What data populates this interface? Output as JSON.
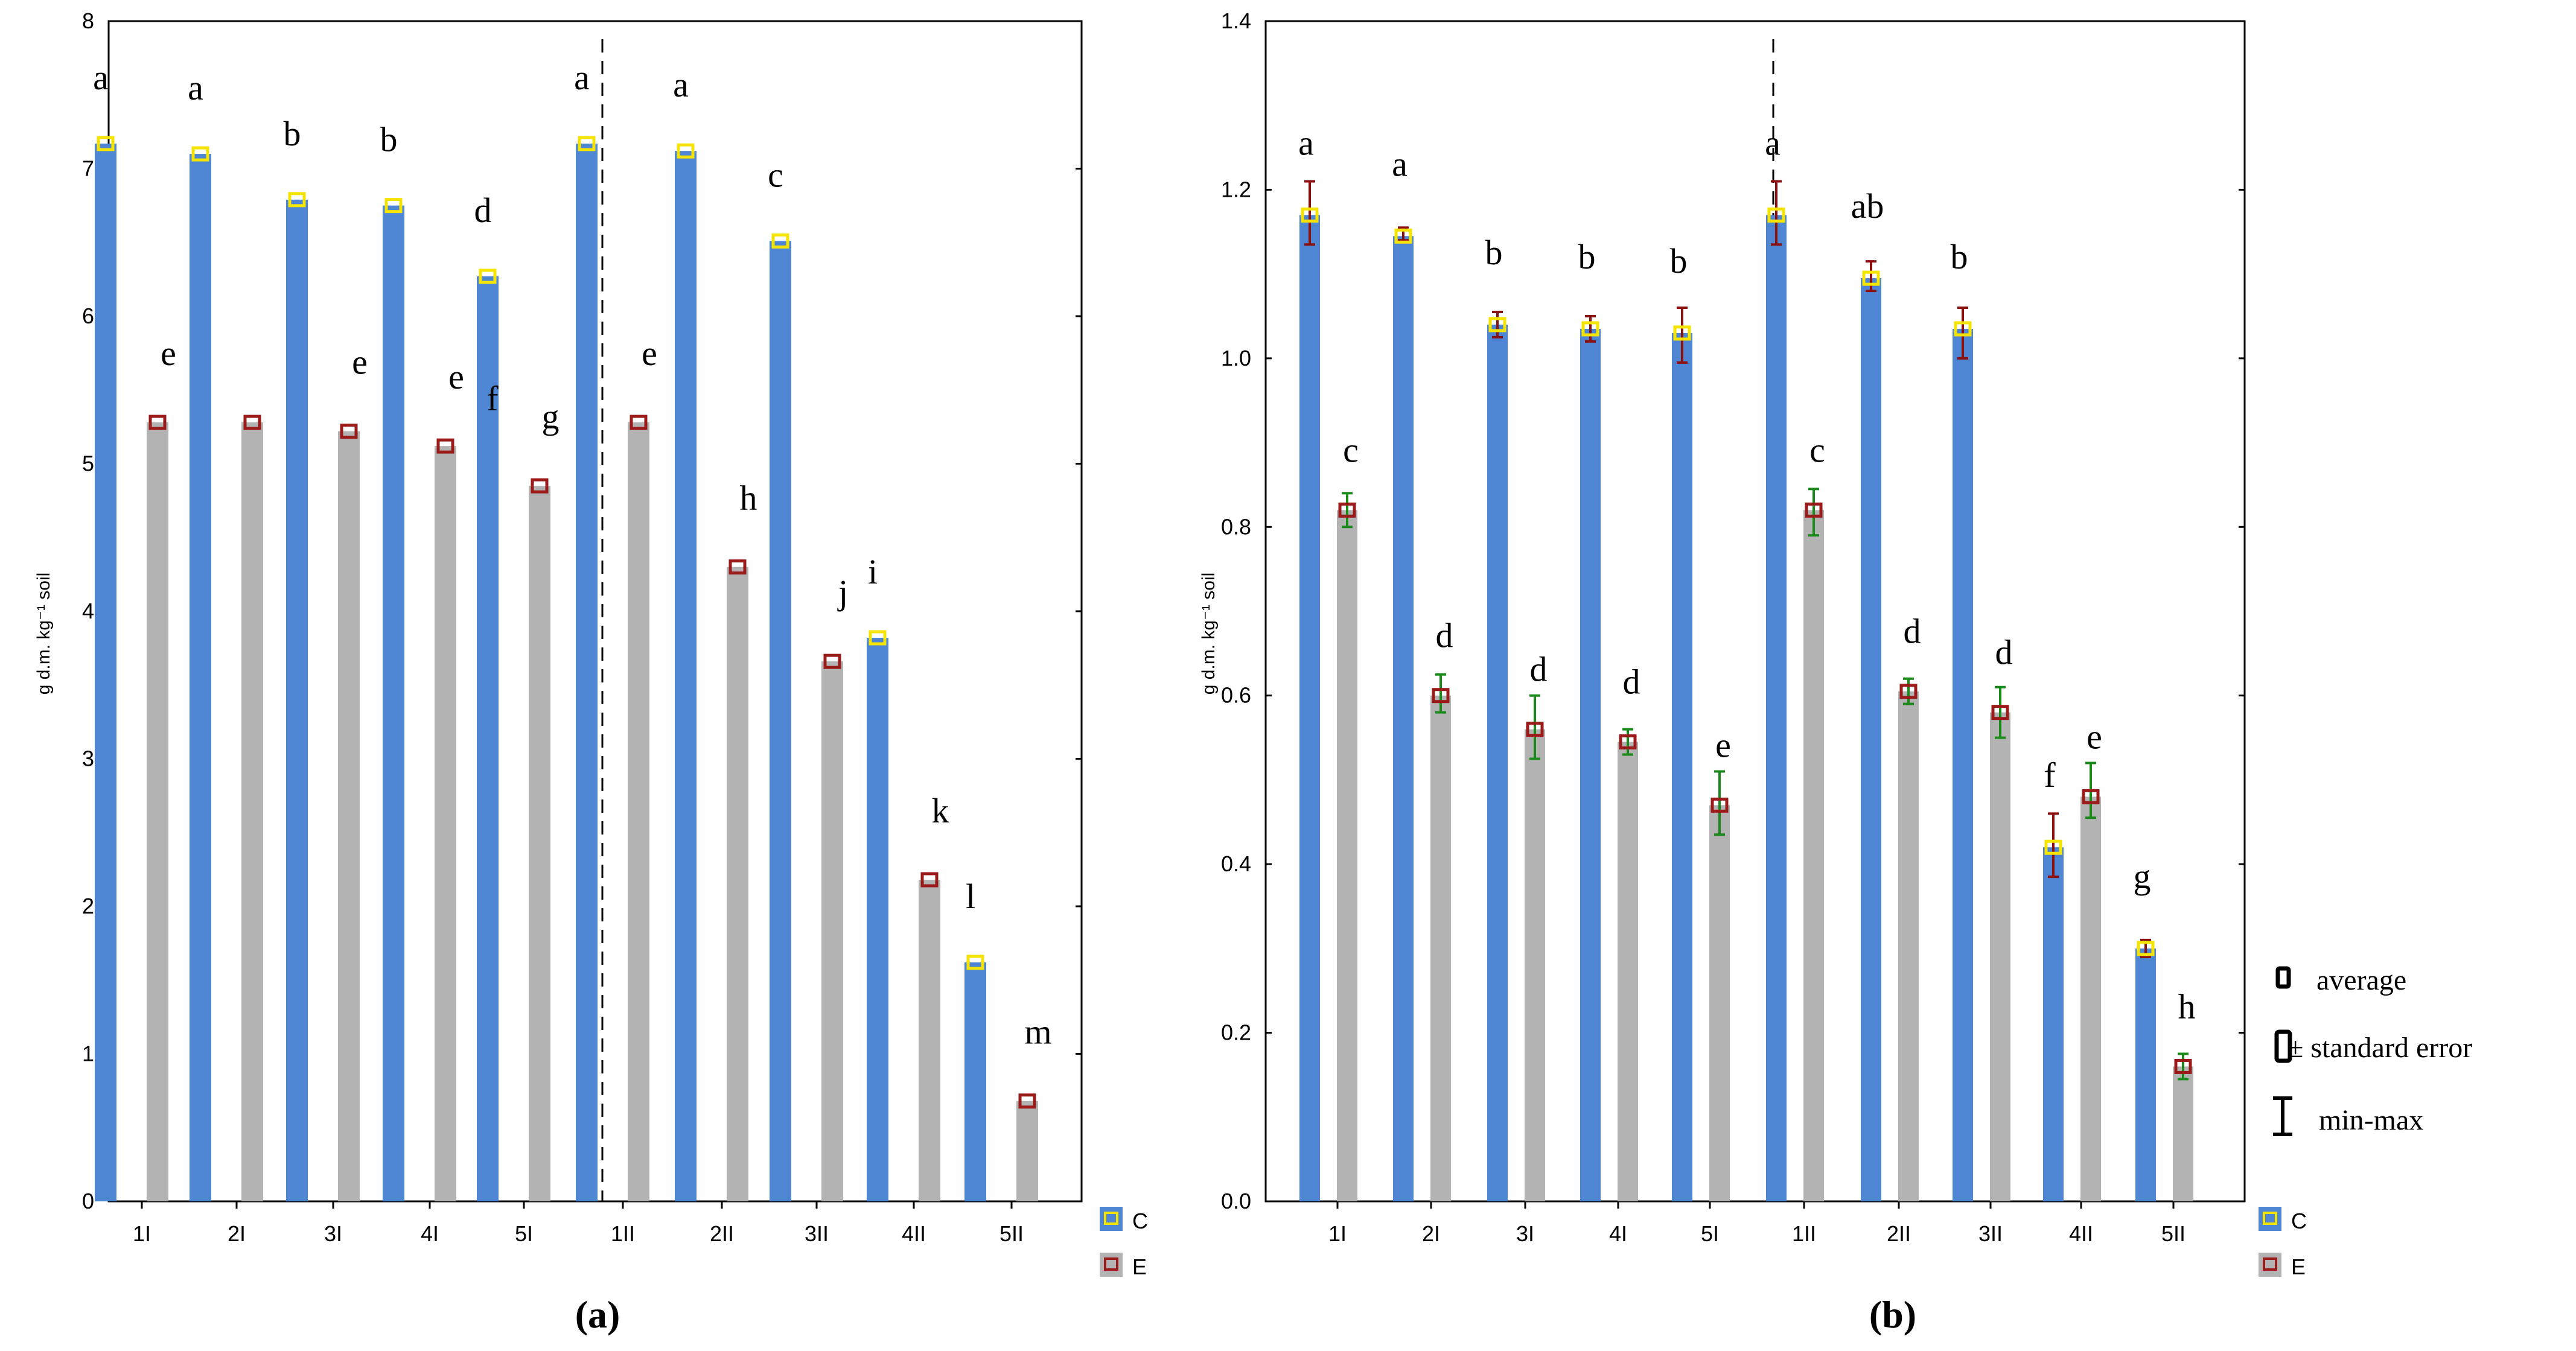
{
  "colors": {
    "C_bar": "#4f86d4",
    "E_bar": "#b3b3b3",
    "C_marker": "#f5e400",
    "E_marker": "#9b1b1b",
    "err_C_b": "#8b1010",
    "err_E_b": "#1a8a1a"
  },
  "legend": {
    "C": "C",
    "E": "E"
  },
  "stat_legend": {
    "average": "average",
    "se": "± standard error",
    "minmax": "min-max"
  },
  "chart_data": [
    {
      "id": "a",
      "type": "bar",
      "caption": "(a)",
      "ylabel": "g d.m. kg⁻¹ soil",
      "ylim": [
        0,
        8
      ],
      "yticks": [
        "0",
        "1",
        "2",
        "3",
        "4",
        "5",
        "6",
        "7",
        "8"
      ],
      "categories": [
        "1I",
        "2I",
        "3I",
        "4I",
        "5I",
        "1II",
        "2II",
        "3II",
        "4II",
        "5II"
      ],
      "series": [
        {
          "name": "C",
          "values": [
            7.17,
            7.1,
            6.79,
            6.75,
            6.27,
            7.17,
            7.12,
            6.51,
            3.82,
            1.62
          ],
          "letters": [
            "a",
            "a",
            "b",
            "b",
            "d",
            "a",
            "a",
            "c",
            "i",
            "l"
          ]
        },
        {
          "name": "E",
          "values": [
            5.28,
            5.28,
            5.22,
            5.12,
            4.85,
            5.28,
            4.3,
            3.66,
            2.18,
            0.68
          ],
          "letters": [
            "e",
            "",
            "e",
            "e",
            "g",
            "e",
            "h",
            "j",
            "k",
            "m"
          ]
        }
      ],
      "extra_letters": [
        "f"
      ]
    },
    {
      "id": "b",
      "type": "bar",
      "caption": "(b)",
      "ylabel": "g d.m. kg⁻¹ soil",
      "ylim": [
        0,
        1.4
      ],
      "yticks": [
        "0.0",
        "0.2",
        "0.4",
        "0.6",
        "0.8",
        "1.0",
        "1.2",
        "1.4"
      ],
      "categories": [
        "1I",
        "2I",
        "3I",
        "4I",
        "5I",
        "1II",
        "2II",
        "3II",
        "4II",
        "5II"
      ],
      "series": [
        {
          "name": "C",
          "values": [
            1.17,
            1.145,
            1.04,
            1.035,
            1.03,
            1.17,
            1.095,
            1.035,
            0.42,
            0.3
          ],
          "min": [
            1.135,
            1.14,
            1.025,
            1.02,
            0.995,
            1.135,
            1.08,
            1.0,
            0.385,
            0.29
          ],
          "max": [
            1.21,
            1.155,
            1.055,
            1.05,
            1.06,
            1.21,
            1.115,
            1.06,
            0.46,
            0.31
          ],
          "letters": [
            "a",
            "a",
            "b",
            "b",
            "b",
            "a",
            "ab",
            "b",
            "f",
            "g"
          ]
        },
        {
          "name": "E",
          "values": [
            0.82,
            0.6,
            0.56,
            0.545,
            0.47,
            0.82,
            0.605,
            0.58,
            0.48,
            0.16
          ],
          "min": [
            0.8,
            0.58,
            0.525,
            0.53,
            0.435,
            0.79,
            0.59,
            0.55,
            0.455,
            0.145
          ],
          "max": [
            0.84,
            0.625,
            0.6,
            0.56,
            0.51,
            0.845,
            0.62,
            0.61,
            0.52,
            0.175
          ],
          "letters": [
            "c",
            "d",
            "d",
            "d",
            "e",
            "c",
            "d",
            "d",
            "e",
            "h"
          ]
        }
      ]
    }
  ]
}
